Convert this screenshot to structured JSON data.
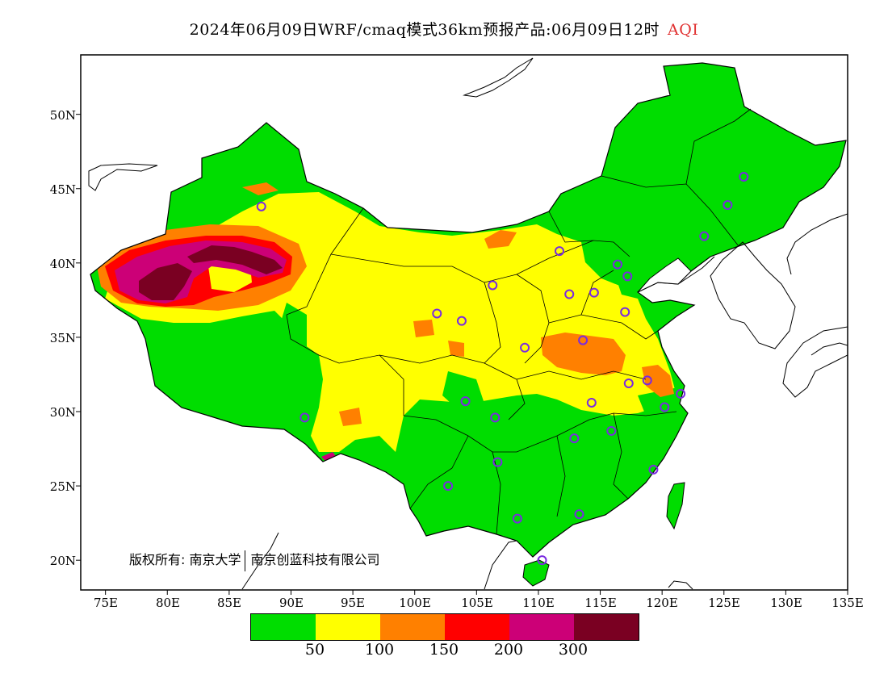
{
  "title": {
    "text": "2024年06月09日WRF/cmaq模式36km预报产品:06月09日12时",
    "pollutant": "AQI"
  },
  "map": {
    "lon_range": [
      73,
      135
    ],
    "lat_range": [
      18,
      54
    ],
    "lat_labels": [
      "50N",
      "45N",
      "40N",
      "35N",
      "30N",
      "25N",
      "20N"
    ],
    "lat_values": [
      50,
      45,
      40,
      35,
      30,
      25,
      20
    ],
    "lon_labels": [
      "75E",
      "80E",
      "85E",
      "90E",
      "95E",
      "100E",
      "105E",
      "110E",
      "115E",
      "120E",
      "125E",
      "130E",
      "135E"
    ],
    "lon_values": [
      75,
      80,
      85,
      90,
      95,
      100,
      105,
      110,
      115,
      120,
      125,
      130,
      135
    ],
    "station_color": "#7a2be0"
  },
  "copyright": {
    "owner_label": "版权所有:",
    "org1": "南京大学",
    "org2": "南京创蓝科技有限公司"
  },
  "legend": {
    "colors": [
      "#00dd00",
      "#ffff00",
      "#ff8000",
      "#ff0000",
      "#cc0077",
      "#7a0022"
    ],
    "thresholds": [
      "50",
      "100",
      "150",
      "200",
      "300"
    ]
  }
}
